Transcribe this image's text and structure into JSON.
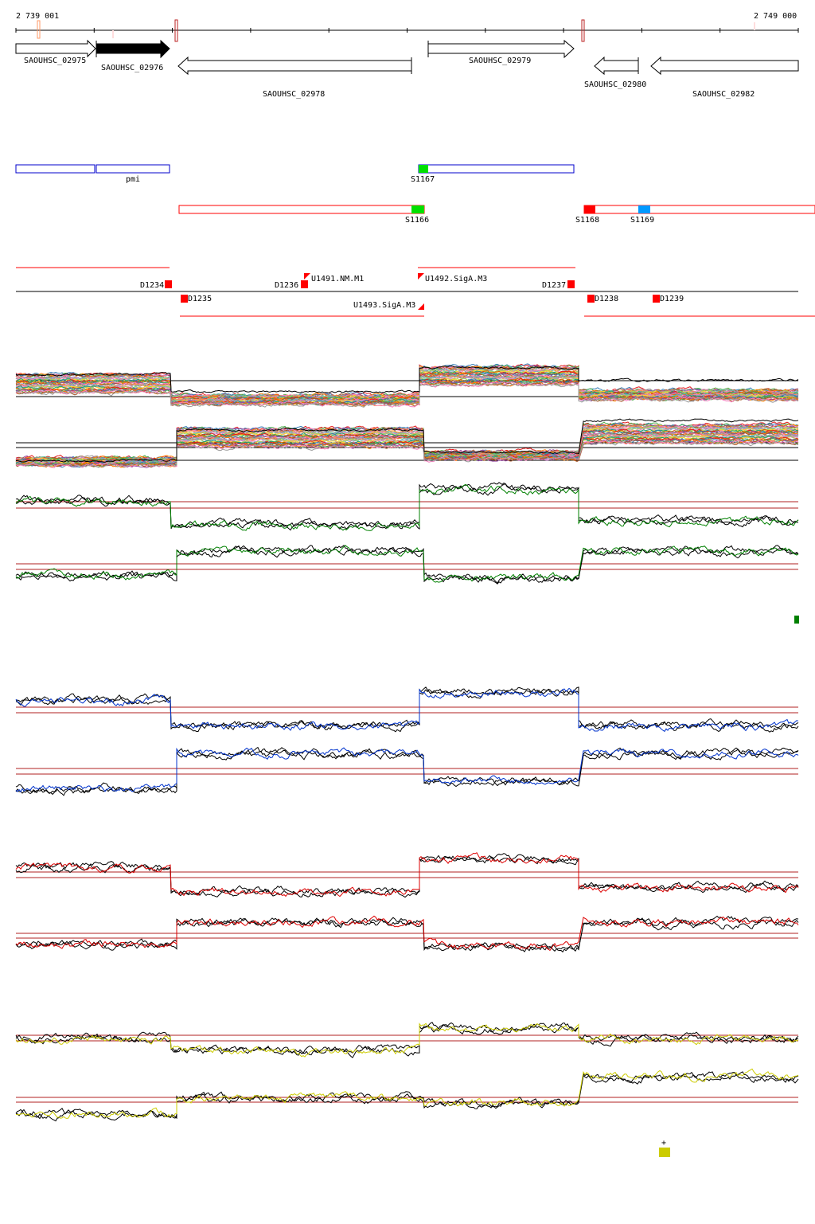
{
  "axis": {
    "start_label": "2 739 001",
    "end_label": "2 749 000"
  },
  "genes": [
    {
      "name": "SAOUHSC_02975",
      "strand": "+",
      "filled": false
    },
    {
      "name": "SAOUHSC_02976",
      "strand": "+",
      "filled": true
    },
    {
      "name": "SAOUHSC_02978",
      "strand": "-",
      "filled": false
    },
    {
      "name": "SAOUHSC_02979",
      "strand": "+",
      "filled": false
    },
    {
      "name": "SAOUHSC_02980",
      "strand": "-",
      "filled": false
    },
    {
      "name": "SAOUHSC_02982",
      "strand": "-",
      "filled": false
    }
  ],
  "operons_plus": {
    "label_pmi": "pmi",
    "label_s1167": "S1167"
  },
  "operons_minus": {
    "label_s1166": "S1166",
    "label_s1168": "S1168",
    "label_s1169": "S1169"
  },
  "features": {
    "d1234": "D1234",
    "d1235": "D1235",
    "d1236": "D1236",
    "u1491": "U1491.NM.M1",
    "u1492": "U1492.SigA.M3",
    "u1493": "U1493.SigA.M3",
    "d1237": "D1237",
    "d1238": "D1238",
    "d1239": "D1239"
  },
  "tracks": [
    {
      "name": "multi-condition",
      "color": "multi"
    },
    {
      "name": "green",
      "color": "#008000"
    },
    {
      "name": "blue",
      "color": "#0033cc"
    },
    {
      "name": "red",
      "color": "#dd0000"
    },
    {
      "name": "yellow",
      "color": "#cccc00"
    }
  ],
  "legend": {
    "plus_symbol": "+"
  },
  "colors": {
    "box_blue": "#0000cc",
    "box_red": "#ff0000",
    "green_mark": "#00e000",
    "blue_mark": "#0099ff",
    "threshold": "#b22222"
  }
}
